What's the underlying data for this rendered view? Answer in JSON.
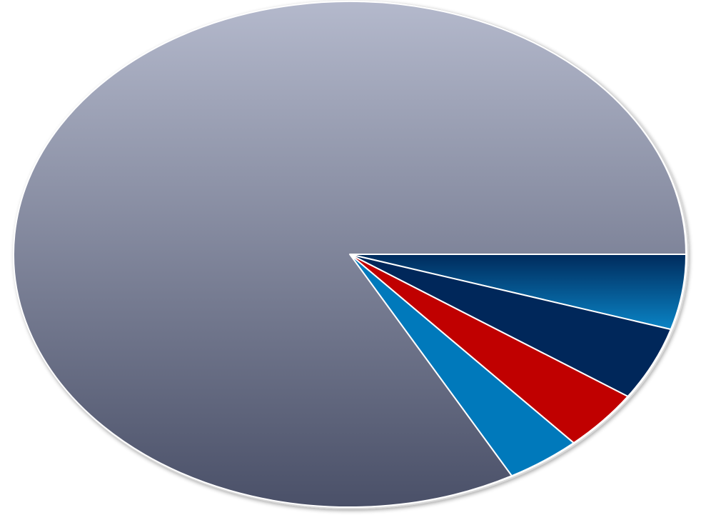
{
  "chart_data": {
    "type": "pie",
    "title": "",
    "slices": [
      {
        "value": 4.8,
        "color_top": "#002b5c",
        "color_bottom": "#0a84c6"
      },
      {
        "value": 4.7,
        "color_top": "#00275a",
        "color_bottom": "#00275a"
      },
      {
        "value": 3.9,
        "color_top": "#c00000",
        "color_bottom": "#c00000"
      },
      {
        "value": 3.6,
        "color_top": "#0079bb",
        "color_bottom": "#0079bb"
      },
      {
        "value": 83.0,
        "color_top": "#b4b9cc",
        "color_bottom": "#4a5068"
      }
    ],
    "start_direction": "right",
    "direction": "clockwise",
    "legend": "none",
    "data_labels": "none",
    "border_color": "#ffffff"
  }
}
